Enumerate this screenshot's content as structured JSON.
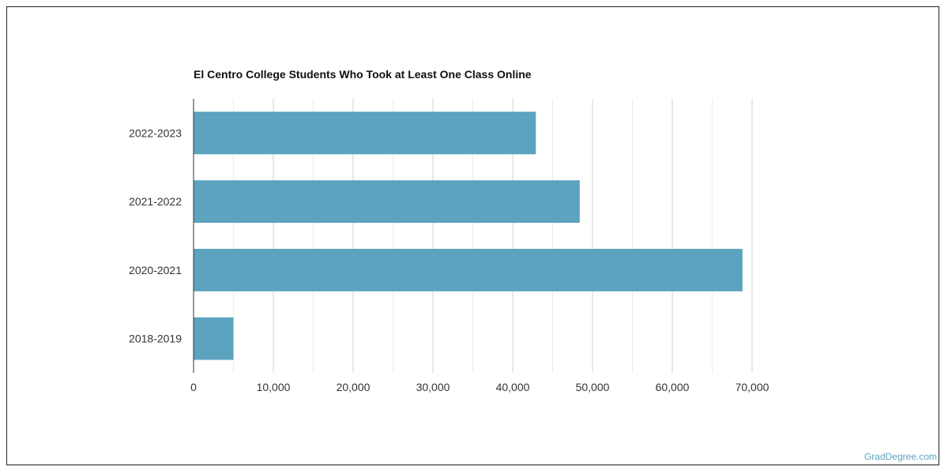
{
  "chart_data": {
    "type": "bar",
    "orientation": "horizontal",
    "title": "El Centro College Students Who Took at Least One Class Online",
    "categories": [
      "2022-2023",
      "2021-2022",
      "2020-2021",
      "2018-2019"
    ],
    "values": [
      42900,
      48400,
      68800,
      5000
    ],
    "xlim": [
      0,
      70000
    ],
    "x_ticks": [
      0,
      10000,
      20000,
      30000,
      40000,
      50000,
      60000,
      70000
    ],
    "x_tick_labels": [
      "0",
      "10,000",
      "20,000",
      "30,000",
      "40,000",
      "50,000",
      "60,000",
      "70,000"
    ],
    "grid": "vertical",
    "bar_color": "#5ba3bf"
  },
  "watermark": "GradDegree.com"
}
